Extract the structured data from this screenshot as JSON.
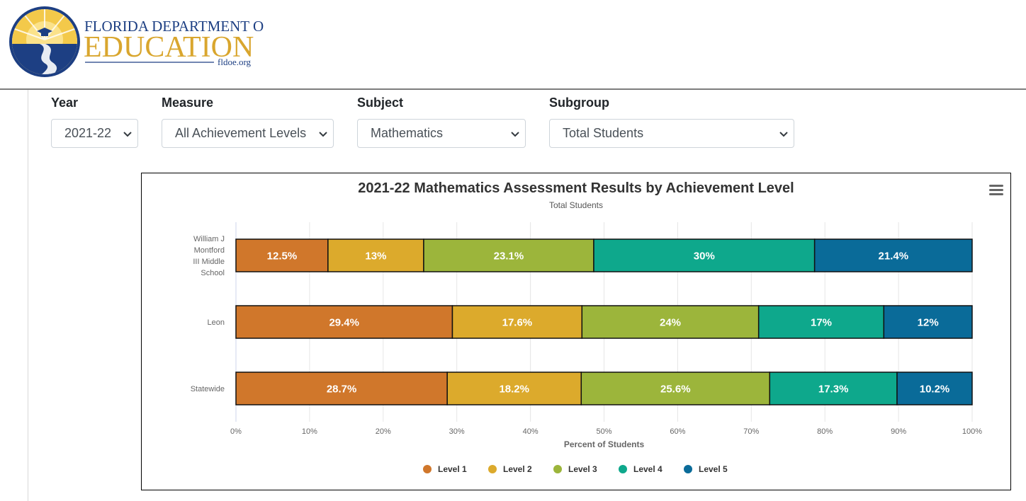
{
  "header": {
    "logo_line1": "FLORIDA DEPARTMENT OF",
    "logo_line2": "EDUCATION",
    "logo_url": "fldoe.org"
  },
  "filters": {
    "year": {
      "label": "Year",
      "value": "2021-22"
    },
    "measure": {
      "label": "Measure",
      "value": "All Achievement Levels"
    },
    "subject": {
      "label": "Subject",
      "value": "Mathematics"
    },
    "subgroup": {
      "label": "Subgroup",
      "value": "Total Students"
    }
  },
  "colors": {
    "level1": "#d0772b",
    "level2": "#dcaa2c",
    "level3": "#9cb53b",
    "level4": "#0ea88c",
    "level5": "#0a6b99"
  },
  "chart_menu_icon": "hamburger-menu-icon",
  "chart_data": {
    "type": "bar",
    "orientation": "horizontal",
    "stacked": true,
    "title": "2021-22 Mathematics Assessment Results by Achievement Level",
    "subtitle": "Total Students",
    "categories": [
      [
        "William J",
        "Montford",
        "III Middle",
        "School"
      ],
      [
        "Leon"
      ],
      [
        "Statewide"
      ]
    ],
    "series": [
      {
        "name": "Level 1",
        "values": [
          12.5,
          29.4,
          28.7
        ],
        "labels": [
          "12.5%",
          "29.4%",
          "28.7%"
        ]
      },
      {
        "name": "Level 2",
        "values": [
          13,
          17.6,
          18.2
        ],
        "labels": [
          "13%",
          "17.6%",
          "18.2%"
        ]
      },
      {
        "name": "Level 3",
        "values": [
          23.1,
          24,
          25.6
        ],
        "labels": [
          "23.1%",
          "24%",
          "25.6%"
        ]
      },
      {
        "name": "Level 4",
        "values": [
          30,
          17,
          17.3
        ],
        "labels": [
          "30%",
          "17%",
          "17.3%"
        ]
      },
      {
        "name": "Level 5",
        "values": [
          21.4,
          12,
          10.2
        ],
        "labels": [
          "21.4%",
          "12%",
          "10.2%"
        ]
      }
    ],
    "xlabel": "Percent of Students",
    "ylabel": "",
    "xlim": [
      0,
      100
    ],
    "ticks": [
      "0%",
      "10%",
      "20%",
      "30%",
      "40%",
      "50%",
      "60%",
      "70%",
      "80%",
      "90%",
      "100%"
    ],
    "grid": true,
    "legend": "bottom"
  }
}
